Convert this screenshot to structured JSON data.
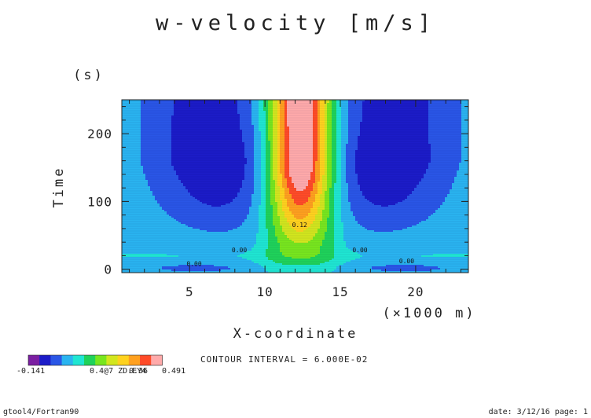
{
  "chart_data": {
    "type": "heatmap",
    "title": "w-velocity [m/s]",
    "xlabel": "X-coordinate",
    "x_unit": "(×1000 m)",
    "ylabel": "Time",
    "y_unit": "(s)",
    "xlim": [
      0.5,
      23.5
    ],
    "ylim": [
      -5,
      250
    ],
    "x_ticks": [
      "5",
      "10",
      "15",
      "20"
    ],
    "x_tick_values": [
      5,
      10,
      15,
      20
    ],
    "y_ticks": [
      "0",
      "100",
      "200"
    ],
    "y_tick_values": [
      0,
      100,
      200
    ],
    "contour_interval_text": "CONTOUR INTERVAL = 6.000E-02",
    "color_levels": [
      -0.141,
      -0.081,
      -0.021,
      0.039,
      0.099,
      0.159,
      0.219,
      0.279,
      0.339,
      0.399,
      0.459,
      0.491
    ],
    "colors": [
      "#7b1fa2",
      "#1c1cc8",
      "#2a56e6",
      "#2ab4f0",
      "#1fe6d2",
      "#1fd25a",
      "#78e61e",
      "#d2e61e",
      "#ffd21e",
      "#ffa01e",
      "#ff4b28",
      "#ffaaaa"
    ],
    "colorbar_labels": [
      "-0.141",
      "0.4@7 ZD.EY4",
      "0.36",
      "0.491"
    ],
    "contour_labels": [
      {
        "text": "0.12",
        "x": 12.3,
        "y": 62
      },
      {
        "text": "0.00",
        "x": 8.3,
        "y": 25
      },
      {
        "text": "0.00",
        "x": 5.3,
        "y": 5
      },
      {
        "text": "0.00",
        "x": 16.3,
        "y": 25
      },
      {
        "text": "0.00",
        "x": 19.4,
        "y": 9
      }
    ]
  },
  "footer": {
    "left": "gtool4/Fortran90",
    "right": "date: 3/12/16 page: 1"
  }
}
